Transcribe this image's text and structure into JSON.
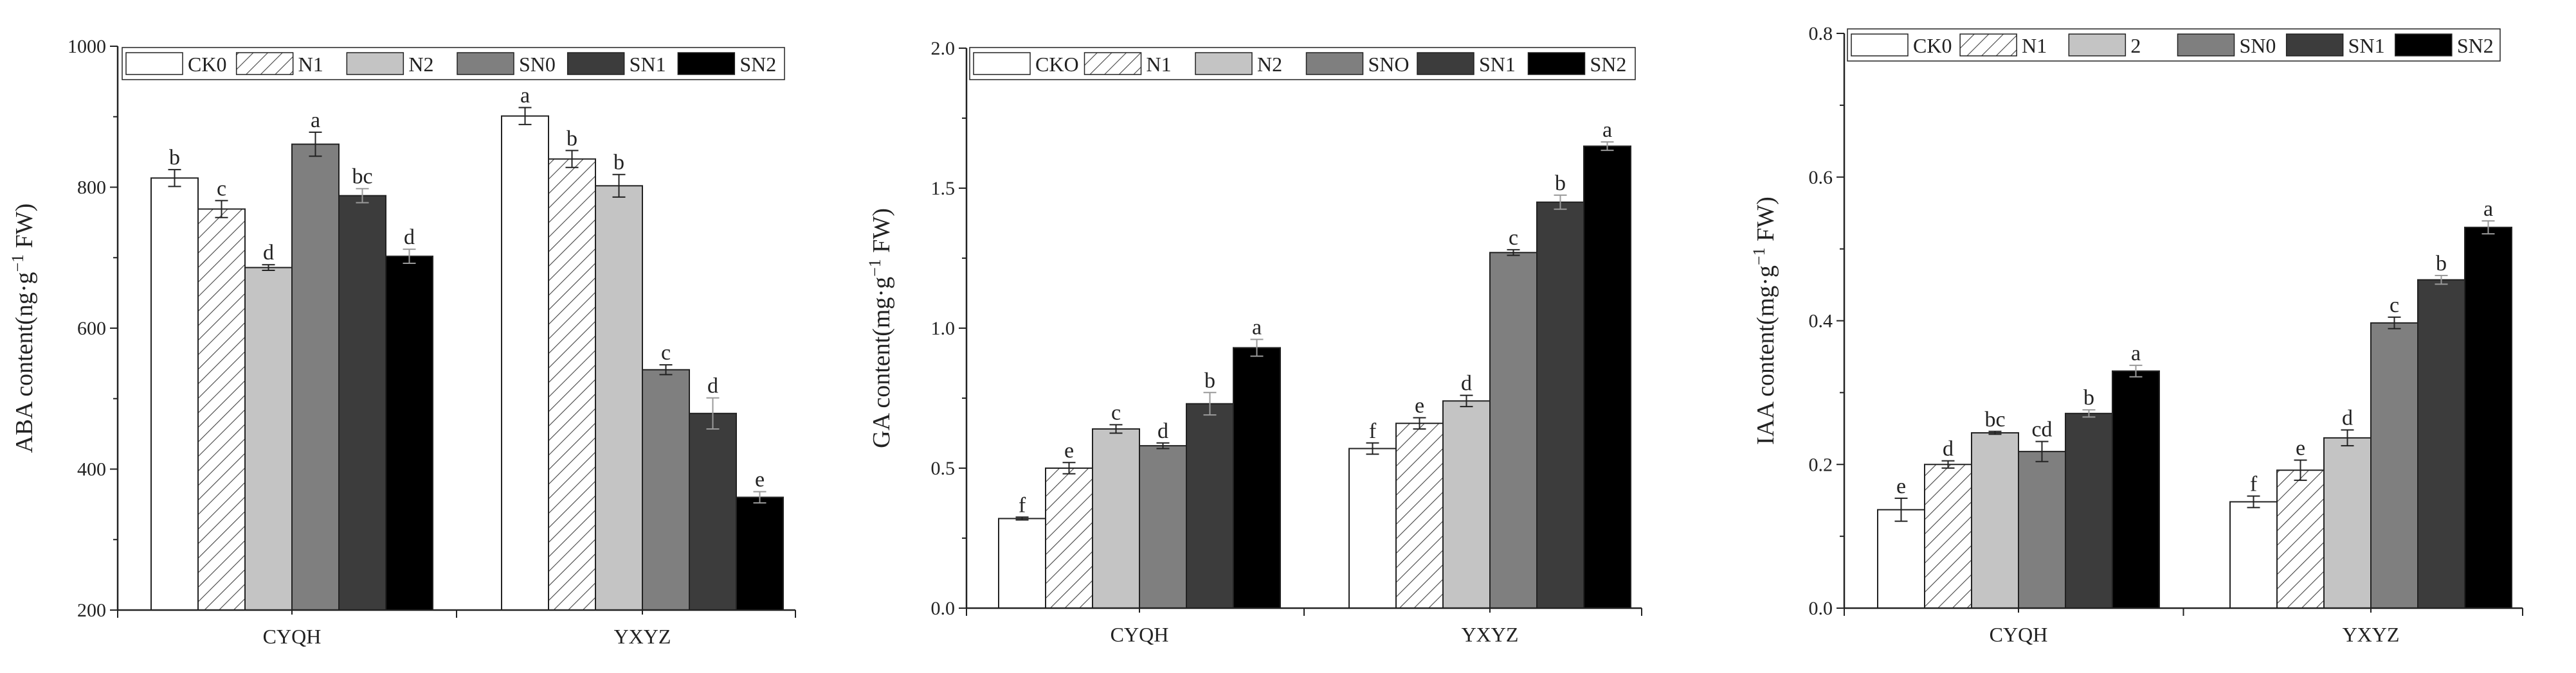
{
  "chart_data": [
    {
      "type": "bar",
      "title": "",
      "xlabel": "",
      "ylabel": "ABA content(ng·g",
      "ylabel_sup": "−1",
      "ylabel_tail": " FW)",
      "ylim": [
        200,
        1000
      ],
      "yticks": [
        200,
        400,
        600,
        800,
        1000
      ],
      "ytick_labels": [
        "200",
        "400",
        "600",
        "800",
        "1000"
      ],
      "categories": [
        "CYQH",
        "YXYZ"
      ],
      "legend": [
        "CK0",
        "N1",
        "N2",
        "SN0",
        "SN1",
        "SN2"
      ],
      "series": [
        {
          "name": "CK0",
          "style": "white",
          "values": [
            813,
            901
          ],
          "errors": [
            12,
            12
          ],
          "letters": [
            "b",
            "a"
          ]
        },
        {
          "name": "N1",
          "style": "hatch",
          "values": [
            769,
            840
          ],
          "errors": [
            12,
            12
          ],
          "letters": [
            "c",
            "b"
          ]
        },
        {
          "name": "N2",
          "style": "light",
          "values": [
            686,
            802
          ],
          "errors": [
            4,
            16
          ],
          "letters": [
            "d",
            "b"
          ]
        },
        {
          "name": "SN0",
          "style": "mid",
          "values": [
            861,
            541
          ],
          "errors": [
            17,
            7
          ],
          "letters": [
            "a",
            "c"
          ]
        },
        {
          "name": "SN1",
          "style": "dark",
          "values": [
            788,
            479
          ],
          "errors": [
            10,
            22
          ],
          "letters": [
            "bc",
            "d"
          ]
        },
        {
          "name": "SN2",
          "style": "black",
          "values": [
            702,
            360
          ],
          "errors": [
            10,
            8
          ],
          "letters": [
            "d",
            "e"
          ]
        }
      ]
    },
    {
      "type": "bar",
      "title": "",
      "xlabel": "",
      "ylabel": "GA content(mg·g",
      "ylabel_sup": "−1",
      "ylabel_tail": " FW)",
      "ylim": [
        0,
        2.0
      ],
      "yticks": [
        0,
        0.5,
        1.0,
        1.5,
        2.0
      ],
      "ytick_labels": [
        "0.0",
        "0.5",
        "1.0",
        "1.5",
        "2.0"
      ],
      "categories": [
        "CYQH",
        "YXYZ"
      ],
      "legend": [
        "CKO",
        "N1",
        "N2",
        "SNO",
        "SN1",
        "SN2"
      ],
      "series": [
        {
          "name": "CKO",
          "style": "white",
          "values": [
            0.32,
            0.57
          ],
          "errors": [
            0.005,
            0.02
          ],
          "letters": [
            "f",
            "f"
          ]
        },
        {
          "name": "N1",
          "style": "hatch",
          "values": [
            0.5,
            0.66
          ],
          "errors": [
            0.02,
            0.02
          ],
          "letters": [
            "e",
            "e"
          ]
        },
        {
          "name": "N2",
          "style": "light",
          "values": [
            0.64,
            0.74
          ],
          "errors": [
            0.015,
            0.02
          ],
          "letters": [
            "c",
            "d"
          ]
        },
        {
          "name": "SNO",
          "style": "mid",
          "values": [
            0.58,
            1.27
          ],
          "errors": [
            0.01,
            0.01
          ],
          "letters": [
            "d",
            "c"
          ]
        },
        {
          "name": "SN1",
          "style": "dark",
          "values": [
            0.73,
            1.45
          ],
          "errors": [
            0.04,
            0.025
          ],
          "letters": [
            "b",
            "b"
          ]
        },
        {
          "name": "SN2",
          "style": "black",
          "values": [
            0.93,
            1.65
          ],
          "errors": [
            0.03,
            0.015
          ],
          "letters": [
            "a",
            "a"
          ]
        }
      ]
    },
    {
      "type": "bar",
      "title": "",
      "xlabel": "",
      "ylabel": "IAA content(mg·g",
      "ylabel_sup": "−1",
      "ylabel_tail": " FW)",
      "ylim": [
        0,
        0.8
      ],
      "yticks": [
        0,
        0.2,
        0.4,
        0.6,
        0.8
      ],
      "ytick_labels": [
        "0.0",
        "0.2",
        "0.4",
        "0.6",
        "0.8"
      ],
      "categories": [
        "CYQH",
        "YXYZ"
      ],
      "legend": [
        "CK0",
        "N1",
        "2",
        "SN0",
        "SN1",
        "SN2"
      ],
      "series": [
        {
          "name": "CK0",
          "style": "white",
          "values": [
            0.137,
            0.148
          ],
          "errors": [
            0.016,
            0.008
          ],
          "letters": [
            "e",
            "f"
          ]
        },
        {
          "name": "N1",
          "style": "hatch",
          "values": [
            0.2,
            0.192
          ],
          "errors": [
            0.005,
            0.014
          ],
          "letters": [
            "d",
            "e"
          ]
        },
        {
          "name": "2",
          "style": "light",
          "values": [
            0.244,
            0.237
          ],
          "errors": [
            0.002,
            0.011
          ],
          "letters": [
            "bc",
            "d"
          ]
        },
        {
          "name": "SN0",
          "style": "mid",
          "values": [
            0.218,
            0.397
          ],
          "errors": [
            0.014,
            0.008
          ],
          "letters": [
            "cd",
            "c"
          ]
        },
        {
          "name": "SN1",
          "style": "dark",
          "values": [
            0.271,
            0.457
          ],
          "errors": [
            0.005,
            0.006
          ],
          "letters": [
            "b",
            "b"
          ]
        },
        {
          "name": "SN2",
          "style": "black",
          "values": [
            0.33,
            0.53
          ],
          "errors": [
            0.008,
            0.009
          ],
          "letters": [
            "a",
            "a"
          ]
        }
      ]
    }
  ],
  "colors": {
    "white": "#ffffff",
    "light": "#c4c4c4",
    "mid": "#7f7f7f",
    "dark": "#3c3c3c",
    "black": "#000000",
    "axis": "#222222",
    "hatch": "#444444"
  }
}
